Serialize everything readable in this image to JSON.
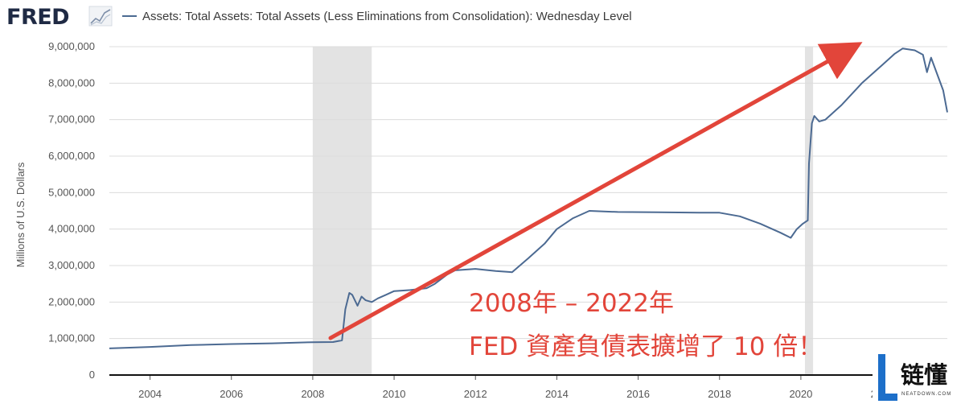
{
  "header": {
    "logo_text": "FRED",
    "legend_label": "Assets: Total Assets: Total Assets (Less Eliminations from Consolidation): Wednesday Level"
  },
  "annotation": {
    "line1": "2008年 – 2022年",
    "line2": "FED 資產負債表擴增了 10 倍！",
    "color": "#e2453a"
  },
  "watermark": {
    "title": "链懂",
    "url": "NEATDOWN.COM",
    "mark_color": "#1d6fc9"
  },
  "colors": {
    "series": "#4c6a92",
    "recession": "#e3e3e3",
    "grid": "#dcdcdc",
    "axis": "#111111"
  },
  "chart_data": {
    "type": "line",
    "title": "",
    "xlabel": "",
    "ylabel": "Millions of U.S. Dollars",
    "xlim": [
      2003,
      2023.6
    ],
    "ylim": [
      0,
      9000000
    ],
    "x_ticks": [
      2004,
      2006,
      2008,
      2010,
      2012,
      2014,
      2016,
      2018,
      2020,
      2022
    ],
    "y_ticks": [
      0,
      1000000,
      2000000,
      3000000,
      4000000,
      5000000,
      6000000,
      7000000,
      8000000,
      9000000
    ],
    "y_tick_labels": [
      "0",
      "1,000,000",
      "2,000,000",
      "3,000,000",
      "4,000,000",
      "5,000,000",
      "6,000,000",
      "7,000,000",
      "8,000,000",
      "9,000,000"
    ],
    "grid": "horizontal",
    "recessions": [
      [
        2008.0,
        2009.45
      ],
      [
        2020.1,
        2020.3
      ]
    ],
    "series": [
      {
        "name": "Assets: Total Assets: Total Assets (Less Eliminations from Consolidation): Wednesday Level",
        "x": [
          2003.0,
          2004.0,
          2005.0,
          2006.0,
          2007.0,
          2008.0,
          2008.5,
          2008.72,
          2008.8,
          2008.9,
          2008.97,
          2009.1,
          2009.2,
          2009.3,
          2009.45,
          2009.6,
          2009.8,
          2010.0,
          2010.4,
          2010.8,
          2011.0,
          2011.3,
          2011.5,
          2012.0,
          2012.5,
          2012.9,
          2013.3,
          2013.7,
          2014.0,
          2014.4,
          2014.8,
          2015.5,
          2016.5,
          2017.5,
          2018.0,
          2018.5,
          2019.0,
          2019.5,
          2019.75,
          2019.9,
          2020.05,
          2020.17,
          2020.2,
          2020.27,
          2020.33,
          2020.45,
          2020.6,
          2021.0,
          2021.5,
          2022.0,
          2022.3,
          2022.5,
          2022.8,
          2023.0,
          2023.1,
          2023.2,
          2023.5,
          2023.6
        ],
        "values": [
          730000,
          770000,
          820000,
          850000,
          870000,
          900000,
          905000,
          950000,
          1800000,
          2250000,
          2200000,
          1900000,
          2150000,
          2050000,
          2000000,
          2100000,
          2200000,
          2300000,
          2330000,
          2380000,
          2500000,
          2750000,
          2870000,
          2910000,
          2850000,
          2820000,
          3200000,
          3600000,
          4000000,
          4300000,
          4500000,
          4470000,
          4460000,
          4450000,
          4450000,
          4350000,
          4150000,
          3900000,
          3760000,
          4000000,
          4150000,
          4240000,
          5800000,
          6900000,
          7100000,
          6950000,
          7000000,
          7400000,
          8000000,
          8500000,
          8800000,
          8950000,
          8900000,
          8780000,
          8300000,
          8700000,
          7800000,
          7200000
        ]
      }
    ]
  }
}
